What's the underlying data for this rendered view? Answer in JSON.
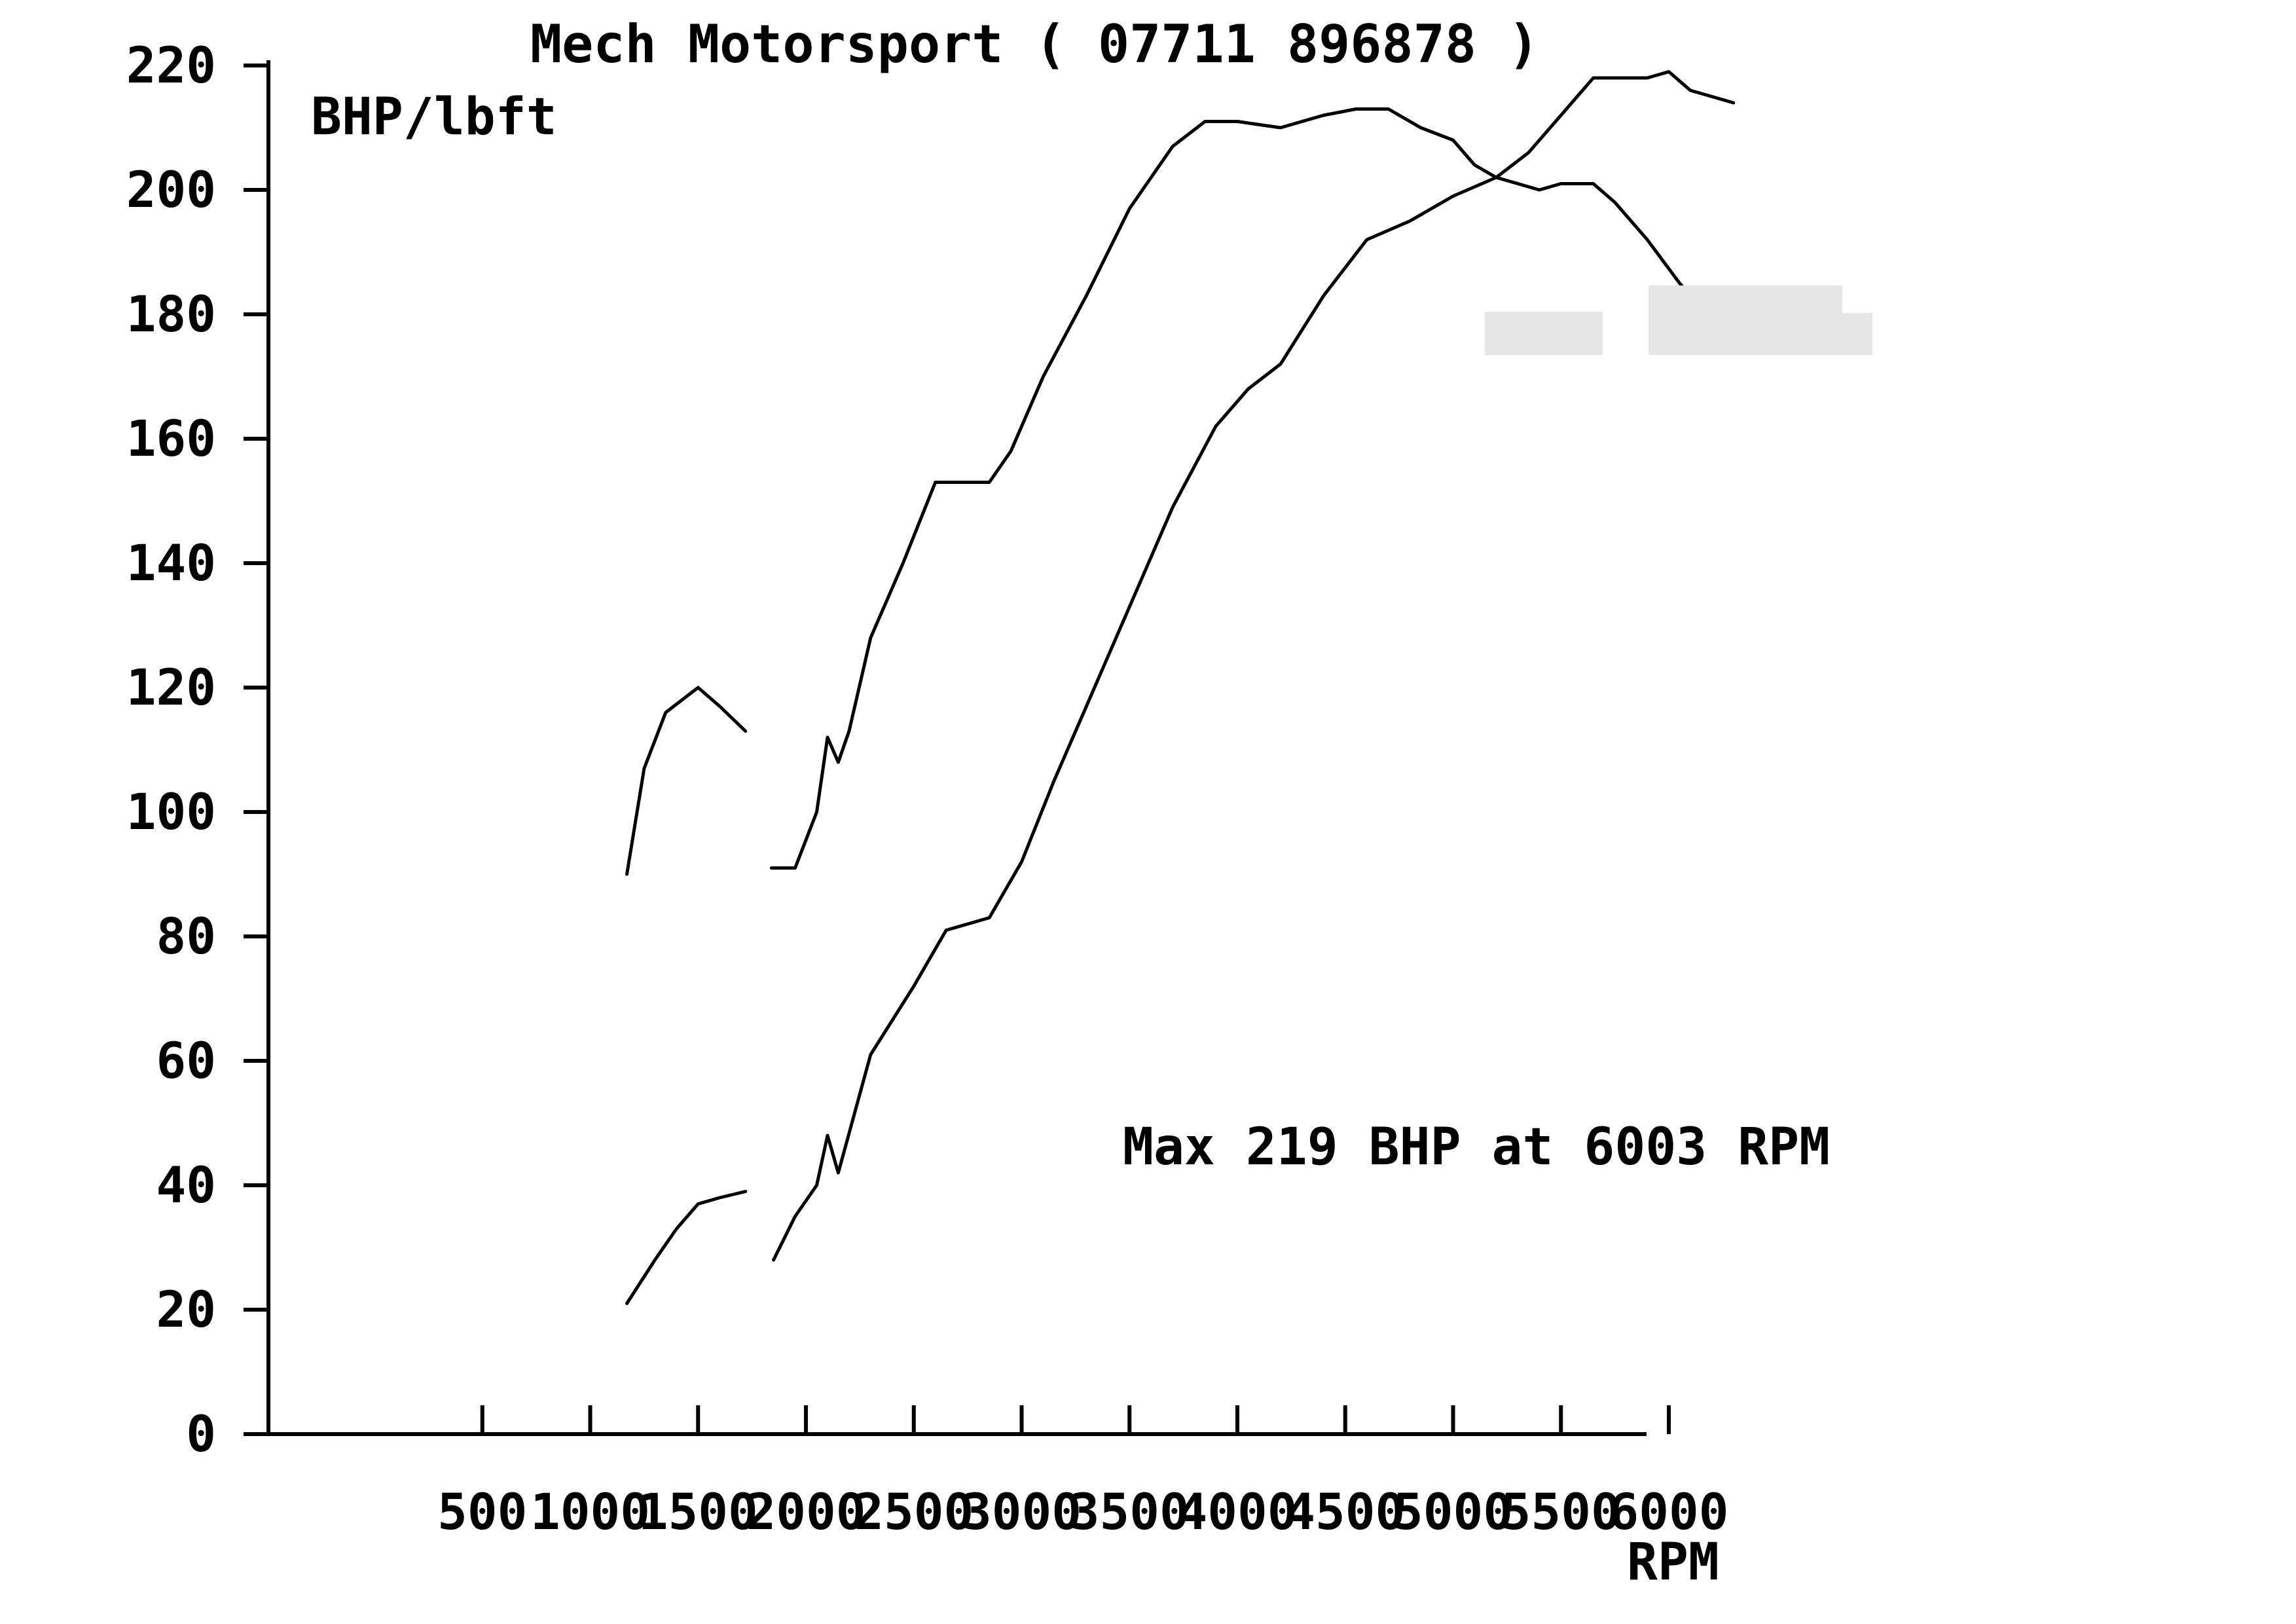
{
  "chart_data": {
    "type": "line",
    "title": "Mech Motorsport  ( 07711 896878 )",
    "ylabel": "BHP/lbft",
    "xlabel": "RPM",
    "annotation": "Max 219 BHP at 6003 RPM",
    "xlim": [
      0,
      6500
    ],
    "ylim": [
      0,
      220
    ],
    "x_ticks": [
      500,
      1000,
      1500,
      2000,
      2500,
      3000,
      3500,
      4000,
      4500,
      5000,
      5500,
      6000
    ],
    "y_ticks": [
      0,
      20,
      40,
      60,
      80,
      100,
      120,
      140,
      160,
      180,
      200,
      220
    ],
    "grid": false,
    "colors": {
      "line": "#000000",
      "background": "#ffffff",
      "redaction": "#e6e6e6"
    },
    "series": [
      {
        "segments": [
          [
            [
              1170,
              90
            ],
            [
              1250,
              107
            ],
            [
              1350,
              116
            ],
            [
              1500,
              120
            ],
            [
              1600,
              117
            ],
            [
              1720,
              113
            ]
          ],
          [
            [
              1840,
              91
            ],
            [
              1950,
              91
            ],
            [
              2050,
              100
            ],
            [
              2100,
              112
            ],
            [
              2150,
              108
            ],
            [
              2200,
              113
            ],
            [
              2300,
              128
            ],
            [
              2450,
              140
            ],
            [
              2600,
              153
            ],
            [
              2750,
              153
            ],
            [
              2850,
              153
            ],
            [
              2950,
              158
            ],
            [
              3100,
              170
            ],
            [
              3300,
              183
            ],
            [
              3500,
              197
            ],
            [
              3700,
              207
            ],
            [
              3850,
              211
            ],
            [
              4000,
              211
            ],
            [
              4200,
              210
            ],
            [
              4400,
              212
            ],
            [
              4550,
              213
            ],
            [
              4700,
              213
            ],
            [
              4850,
              210
            ],
            [
              5000,
              208
            ],
            [
              5100,
              204
            ],
            [
              5200,
              202
            ],
            [
              5300,
              201
            ],
            [
              5400,
              200
            ],
            [
              5500,
              201
            ],
            [
              5650,
              201
            ],
            [
              5750,
              198
            ],
            [
              5900,
              192
            ],
            [
              6050,
              185
            ],
            [
              6200,
              179
            ],
            [
              6300,
              177
            ]
          ]
        ]
      },
      {
        "segments": [
          [
            [
              1170,
              21
            ],
            [
              1300,
              28
            ],
            [
              1400,
              33
            ],
            [
              1500,
              37
            ],
            [
              1600,
              38
            ],
            [
              1720,
              39
            ]
          ],
          [
            [
              1850,
              28
            ],
            [
              1950,
              35
            ],
            [
              2050,
              40
            ],
            [
              2100,
              48
            ],
            [
              2150,
              42
            ],
            [
              2300,
              61
            ],
            [
              2500,
              72
            ],
            [
              2650,
              81
            ],
            [
              2850,
              83
            ],
            [
              3000,
              92
            ],
            [
              3150,
              105
            ],
            [
              3300,
              117
            ],
            [
              3500,
              133
            ],
            [
              3700,
              149
            ],
            [
              3900,
              162
            ],
            [
              4050,
              168
            ],
            [
              4200,
              172
            ],
            [
              4400,
              183
            ],
            [
              4600,
              192
            ],
            [
              4800,
              195
            ],
            [
              5000,
              199
            ],
            [
              5200,
              202
            ],
            [
              5350,
              206
            ],
            [
              5500,
              212
            ],
            [
              5650,
              218
            ],
            [
              5800,
              218
            ],
            [
              5900,
              218
            ],
            [
              6000,
              219
            ],
            [
              6100,
              216
            ],
            [
              6200,
              215
            ],
            [
              6300,
              214
            ]
          ]
        ]
      }
    ]
  }
}
